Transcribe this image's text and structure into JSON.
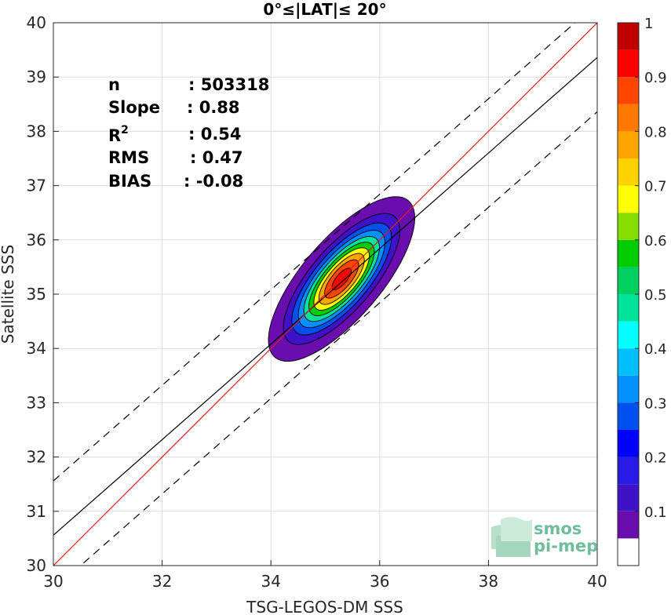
{
  "chart_data": {
    "type": "contour",
    "title": "0°≤|LAT|≤ 20°",
    "xlabel": "TSG-LEGOS-DM SSS",
    "ylabel": "Satellite SSS",
    "xlim": [
      30,
      40
    ],
    "ylim": [
      30,
      40
    ],
    "x_ticks": [
      "30",
      "32",
      "34",
      "36",
      "38",
      "40"
    ],
    "y_ticks": [
      "30",
      "31",
      "32",
      "33",
      "34",
      "35",
      "36",
      "37",
      "38",
      "39",
      "40"
    ],
    "grid": true,
    "stats": [
      {
        "label": "n",
        "value": ": 503318"
      },
      {
        "label": "Slope",
        "value": ": 0.88"
      },
      {
        "label": "R",
        "sup": "2",
        "value": ": 0.54"
      },
      {
        "label": "RMS",
        "value": ": 0.47"
      },
      {
        "label": "BIAS",
        "value": ": -0.08"
      }
    ],
    "lines": {
      "identity": {
        "slope": 1.0,
        "intercept": 0.0,
        "color": "#e41a1c"
      },
      "fit": {
        "slope": 0.88,
        "intercept": 4.16,
        "color": "#000000"
      },
      "bounds": [
        {
          "slope": 0.88,
          "intercept": 5.16,
          "style": "dashed"
        },
        {
          "slope": 0.88,
          "intercept": 3.16,
          "style": "dashed"
        }
      ]
    },
    "density": {
      "center": [
        35.3,
        35.28
      ],
      "spread": [
        0.55,
        0.62
      ],
      "correlation": 0.74,
      "levels": [
        0.05,
        0.15,
        0.25,
        0.35,
        0.45,
        0.55,
        0.65,
        0.75,
        0.85,
        0.95
      ]
    },
    "colorbar": {
      "range": [
        0,
        1
      ],
      "levels": [
        0.05,
        0.1,
        0.15,
        0.2,
        0.25,
        0.3,
        0.35,
        0.4,
        0.45,
        0.5,
        0.55,
        0.6,
        0.65,
        0.7,
        0.75,
        0.8,
        0.85,
        0.9,
        0.95,
        1.0
      ],
      "ticks": [
        "0.1",
        "0.2",
        "0.3",
        "0.4",
        "0.5",
        "0.6",
        "0.7",
        "0.8",
        "0.9",
        "1"
      ],
      "colors": [
        "#ffffff",
        "#6a0dad",
        "#3f11c7",
        "#2a1ae6",
        "#0000ff",
        "#0050f0",
        "#0090ff",
        "#00bfff",
        "#00ffff",
        "#00e39b",
        "#00d060",
        "#00cc00",
        "#88dd00",
        "#ffff00",
        "#ffd200",
        "#ffa500",
        "#ff7800",
        "#ff4500",
        "#ff0000",
        "#c00000"
      ]
    }
  },
  "logo": {
    "line1": "smos",
    "line2": "pi-mep"
  }
}
